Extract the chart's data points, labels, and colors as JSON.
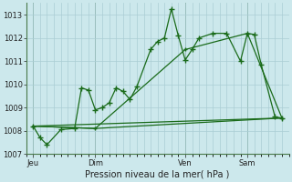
{
  "background_color": "#cce8ec",
  "grid_color": "#aacdd4",
  "line_color": "#1a6b1a",
  "title": "Pression niveau de la mer( hPa )",
  "ylim": [
    1007,
    1013.5
  ],
  "yticks": [
    1007,
    1008,
    1009,
    1010,
    1011,
    1012,
    1013
  ],
  "day_labels": [
    "Jeu",
    "Dim",
    "Ven",
    "Sam"
  ],
  "day_positions": [
    0,
    9,
    22,
    31
  ],
  "xlim": [
    -1,
    37
  ],
  "series1_x": [
    0,
    1,
    2,
    4,
    6,
    7,
    8,
    9,
    10,
    11,
    12,
    13,
    14,
    15,
    17,
    18,
    19,
    20,
    21,
    22,
    23,
    24,
    26,
    28,
    30,
    31,
    32,
    33,
    35,
    36
  ],
  "series1_y": [
    1008.2,
    1007.7,
    1007.4,
    1008.05,
    1008.1,
    1009.85,
    1009.75,
    1008.9,
    1009.0,
    1009.2,
    1009.85,
    1009.7,
    1009.35,
    1009.9,
    1011.5,
    1011.85,
    1012.0,
    1013.25,
    1012.1,
    1011.05,
    1011.5,
    1012.0,
    1012.2,
    1012.2,
    1011.0,
    1012.2,
    1012.15,
    1010.85,
    1008.6,
    1008.55
  ],
  "series2_x": [
    0,
    9,
    22,
    31,
    36
  ],
  "series2_y": [
    1008.2,
    1008.1,
    1011.5,
    1012.2,
    1008.55
  ],
  "series3_x": [
    0,
    36
  ],
  "series3_y": [
    1008.2,
    1008.55
  ],
  "series4_x": [
    0,
    9,
    36
  ],
  "series4_y": [
    1008.2,
    1008.1,
    1008.55
  ],
  "linewidth": 0.9,
  "marker_size": 4
}
